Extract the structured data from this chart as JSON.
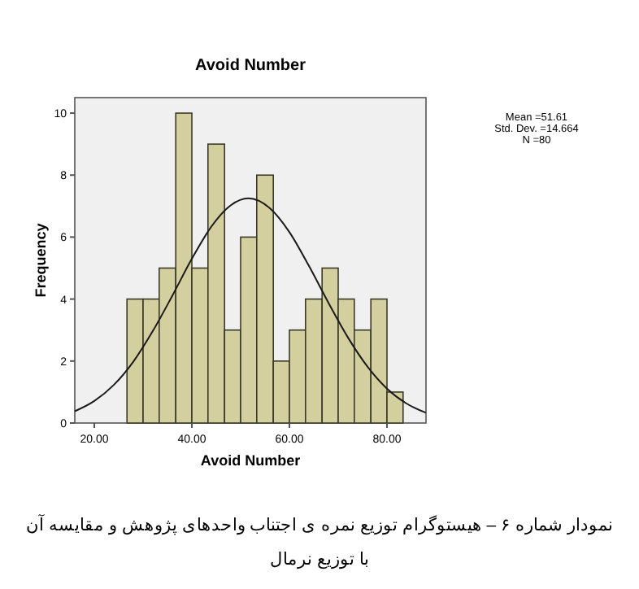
{
  "chart_data": {
    "type": "histogram",
    "title": "Avoid Number",
    "xlabel": "Avoid Number",
    "ylabel": "Frequency",
    "bins": [
      26.7,
      30.0,
      33.3,
      36.7,
      40.0,
      43.3,
      46.7,
      50.0,
      53.3,
      56.7,
      60.0,
      63.3,
      66.7,
      70.0,
      73.3,
      76.7,
      80.0,
      83.3
    ],
    "values": [
      4,
      4,
      5,
      10,
      5,
      9,
      3,
      6,
      8,
      2,
      3,
      4,
      5,
      4,
      3,
      4,
      1
    ],
    "color": "#d4cf9e",
    "series": [
      {
        "type": "line",
        "color": "#1a1a1a",
        "x": [
          16,
          20,
          24,
          28,
          32,
          36,
          40,
          44,
          48,
          51.6,
          56,
          60,
          64,
          68,
          72,
          76,
          80,
          84,
          88
        ],
        "values": [
          0.38,
          0.71,
          1.23,
          1.98,
          2.97,
          4.11,
          5.3,
          6.34,
          7.03,
          7.25,
          6.93,
          6.16,
          5.07,
          3.88,
          2.76,
          1.82,
          1.11,
          0.63,
          0.33
        ]
      }
    ],
    "xlim": [
      16,
      88
    ],
    "ylim": [
      0,
      10.5
    ],
    "xticks": [
      {
        "value": 20,
        "label": "20.00"
      },
      {
        "value": 40,
        "label": "40.00"
      },
      {
        "value": 60,
        "label": "60.00"
      },
      {
        "value": 80,
        "label": "80.00"
      }
    ],
    "yticks": [
      0,
      2,
      4,
      6,
      8,
      10
    ],
    "grid": false,
    "annotations": [
      "Mean =51.61\nStd. Dev. =14.664\nN =80",
      "نمودار شماره ۶ – هیستوگرام توزیع  نمره ی اجتناب  واحدهای پژوهش و مقایسه آن\nبا توزیع نرمال"
    ]
  }
}
